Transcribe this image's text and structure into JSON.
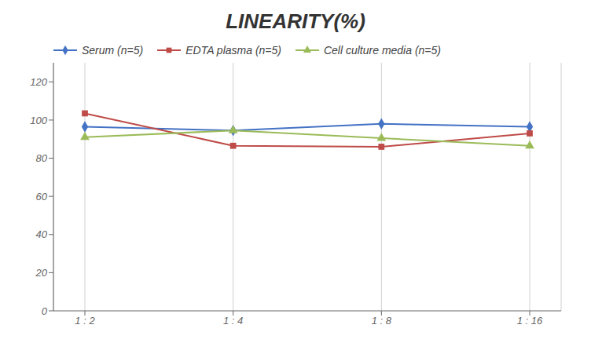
{
  "chart_data": {
    "type": "line",
    "title": "LINEARITY(%)",
    "categories": [
      "1 : 2",
      "1 : 4",
      "1 : 8",
      "1 : 16"
    ],
    "series": [
      {
        "name": "Serum (n=5)",
        "color": "#4472C4",
        "marker": "diamond",
        "values": [
          96.5,
          94.5,
          98.0,
          96.5
        ]
      },
      {
        "name": "EDTA plasma (n=5)",
        "color": "#BE4B48",
        "marker": "square",
        "values": [
          103.5,
          86.5,
          86.0,
          93.0
        ]
      },
      {
        "name": "Cell culture media (n=5)",
        "color": "#9BBB59",
        "marker": "triangle",
        "values": [
          91.0,
          94.5,
          90.5,
          86.5
        ]
      }
    ],
    "ylim": [
      0,
      130
    ],
    "yticks": [
      0,
      20,
      40,
      60,
      80,
      100,
      120
    ],
    "grid": "x",
    "legend": "upper left"
  }
}
